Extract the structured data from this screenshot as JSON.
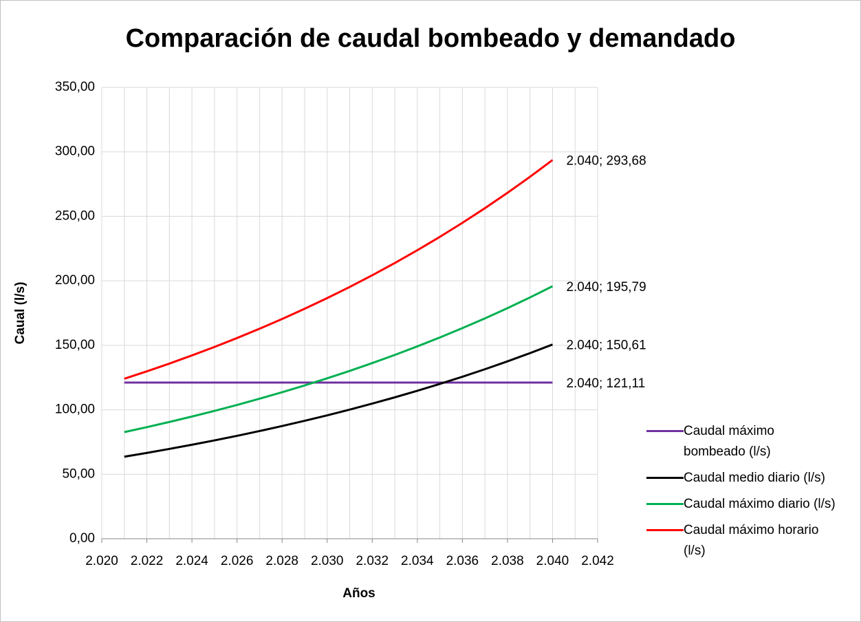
{
  "chart_data": {
    "type": "line",
    "title": "Comparación de caudal bombeado y demandado",
    "xlabel": "Años",
    "ylabel": "Caual  (l/s)",
    "x": [
      2021,
      2022,
      2023,
      2024,
      2025,
      2026,
      2027,
      2028,
      2029,
      2030,
      2031,
      2032,
      2033,
      2034,
      2035,
      2036,
      2037,
      2038,
      2039,
      2040
    ],
    "series": [
      {
        "name": "Caudal máximo bombeado (l/s)",
        "color": "#7030a0",
        "values": [
          121.11,
          121.11,
          121.11,
          121.11,
          121.11,
          121.11,
          121.11,
          121.11,
          121.11,
          121.11,
          121.11,
          121.11,
          121.11,
          121.11,
          121.11,
          121.11,
          121.11,
          121.11,
          121.11,
          121.11
        ],
        "end_label": "2.040; 121,11"
      },
      {
        "name": "Caudal medio diario (l/s)",
        "color": "#000000",
        "values": [
          63.62,
          66.57,
          69.66,
          72.89,
          76.27,
          79.81,
          83.52,
          87.39,
          91.45,
          95.69,
          100.13,
          104.78,
          109.64,
          114.73,
          120.05,
          125.62,
          131.45,
          137.55,
          143.93,
          150.61
        ],
        "end_label": "2.040; 150,61"
      },
      {
        "name": "Caudal máximo diario  (l/s)",
        "color": "#00b050",
        "values": [
          82.71,
          86.54,
          90.56,
          94.76,
          99.15,
          103.75,
          108.58,
          113.61,
          118.89,
          124.4,
          130.17,
          136.21,
          142.53,
          149.15,
          156.07,
          163.31,
          170.89,
          178.82,
          187.11,
          195.79
        ],
        "end_label": "2.040; 195,79"
      },
      {
        "name": "Caudal máximo horario  (l/s)",
        "color": "#ff0000",
        "values": [
          124.06,
          129.81,
          135.84,
          142.14,
          148.73,
          155.63,
          162.86,
          170.41,
          178.33,
          186.6,
          195.25,
          204.32,
          213.8,
          223.72,
          234.1,
          244.96,
          256.33,
          268.22,
          280.66,
          293.68
        ],
        "end_label": "2.040; 293,68"
      }
    ],
    "xlim": [
      2020,
      2042
    ],
    "xticks": [
      {
        "value": 2020,
        "label": "2.020"
      },
      {
        "value": 2022,
        "label": "2.022"
      },
      {
        "value": 2024,
        "label": "2.024"
      },
      {
        "value": 2026,
        "label": "2.026"
      },
      {
        "value": 2028,
        "label": "2.028"
      },
      {
        "value": 2030,
        "label": "2.030"
      },
      {
        "value": 2032,
        "label": "2.032"
      },
      {
        "value": 2034,
        "label": "2.034"
      },
      {
        "value": 2036,
        "label": "2.036"
      },
      {
        "value": 2038,
        "label": "2.038"
      },
      {
        "value": 2040,
        "label": "2.040"
      },
      {
        "value": 2042,
        "label": "2.042"
      }
    ],
    "xminorticks": [
      2021,
      2023,
      2025,
      2027,
      2029,
      2031,
      2033,
      2035,
      2037,
      2039,
      2041
    ],
    "ylim": [
      0,
      350
    ],
    "yticks": [
      {
        "value": 0,
        "label": "0,00"
      },
      {
        "value": 50,
        "label": "50,00"
      },
      {
        "value": 100,
        "label": "100,00"
      },
      {
        "value": 150,
        "label": "150,00"
      },
      {
        "value": 200,
        "label": "200,00"
      },
      {
        "value": 250,
        "label": "250,00"
      },
      {
        "value": 300,
        "label": "300,00"
      },
      {
        "value": 350,
        "label": "350,00"
      }
    ],
    "grid": true,
    "legend": "right"
  }
}
